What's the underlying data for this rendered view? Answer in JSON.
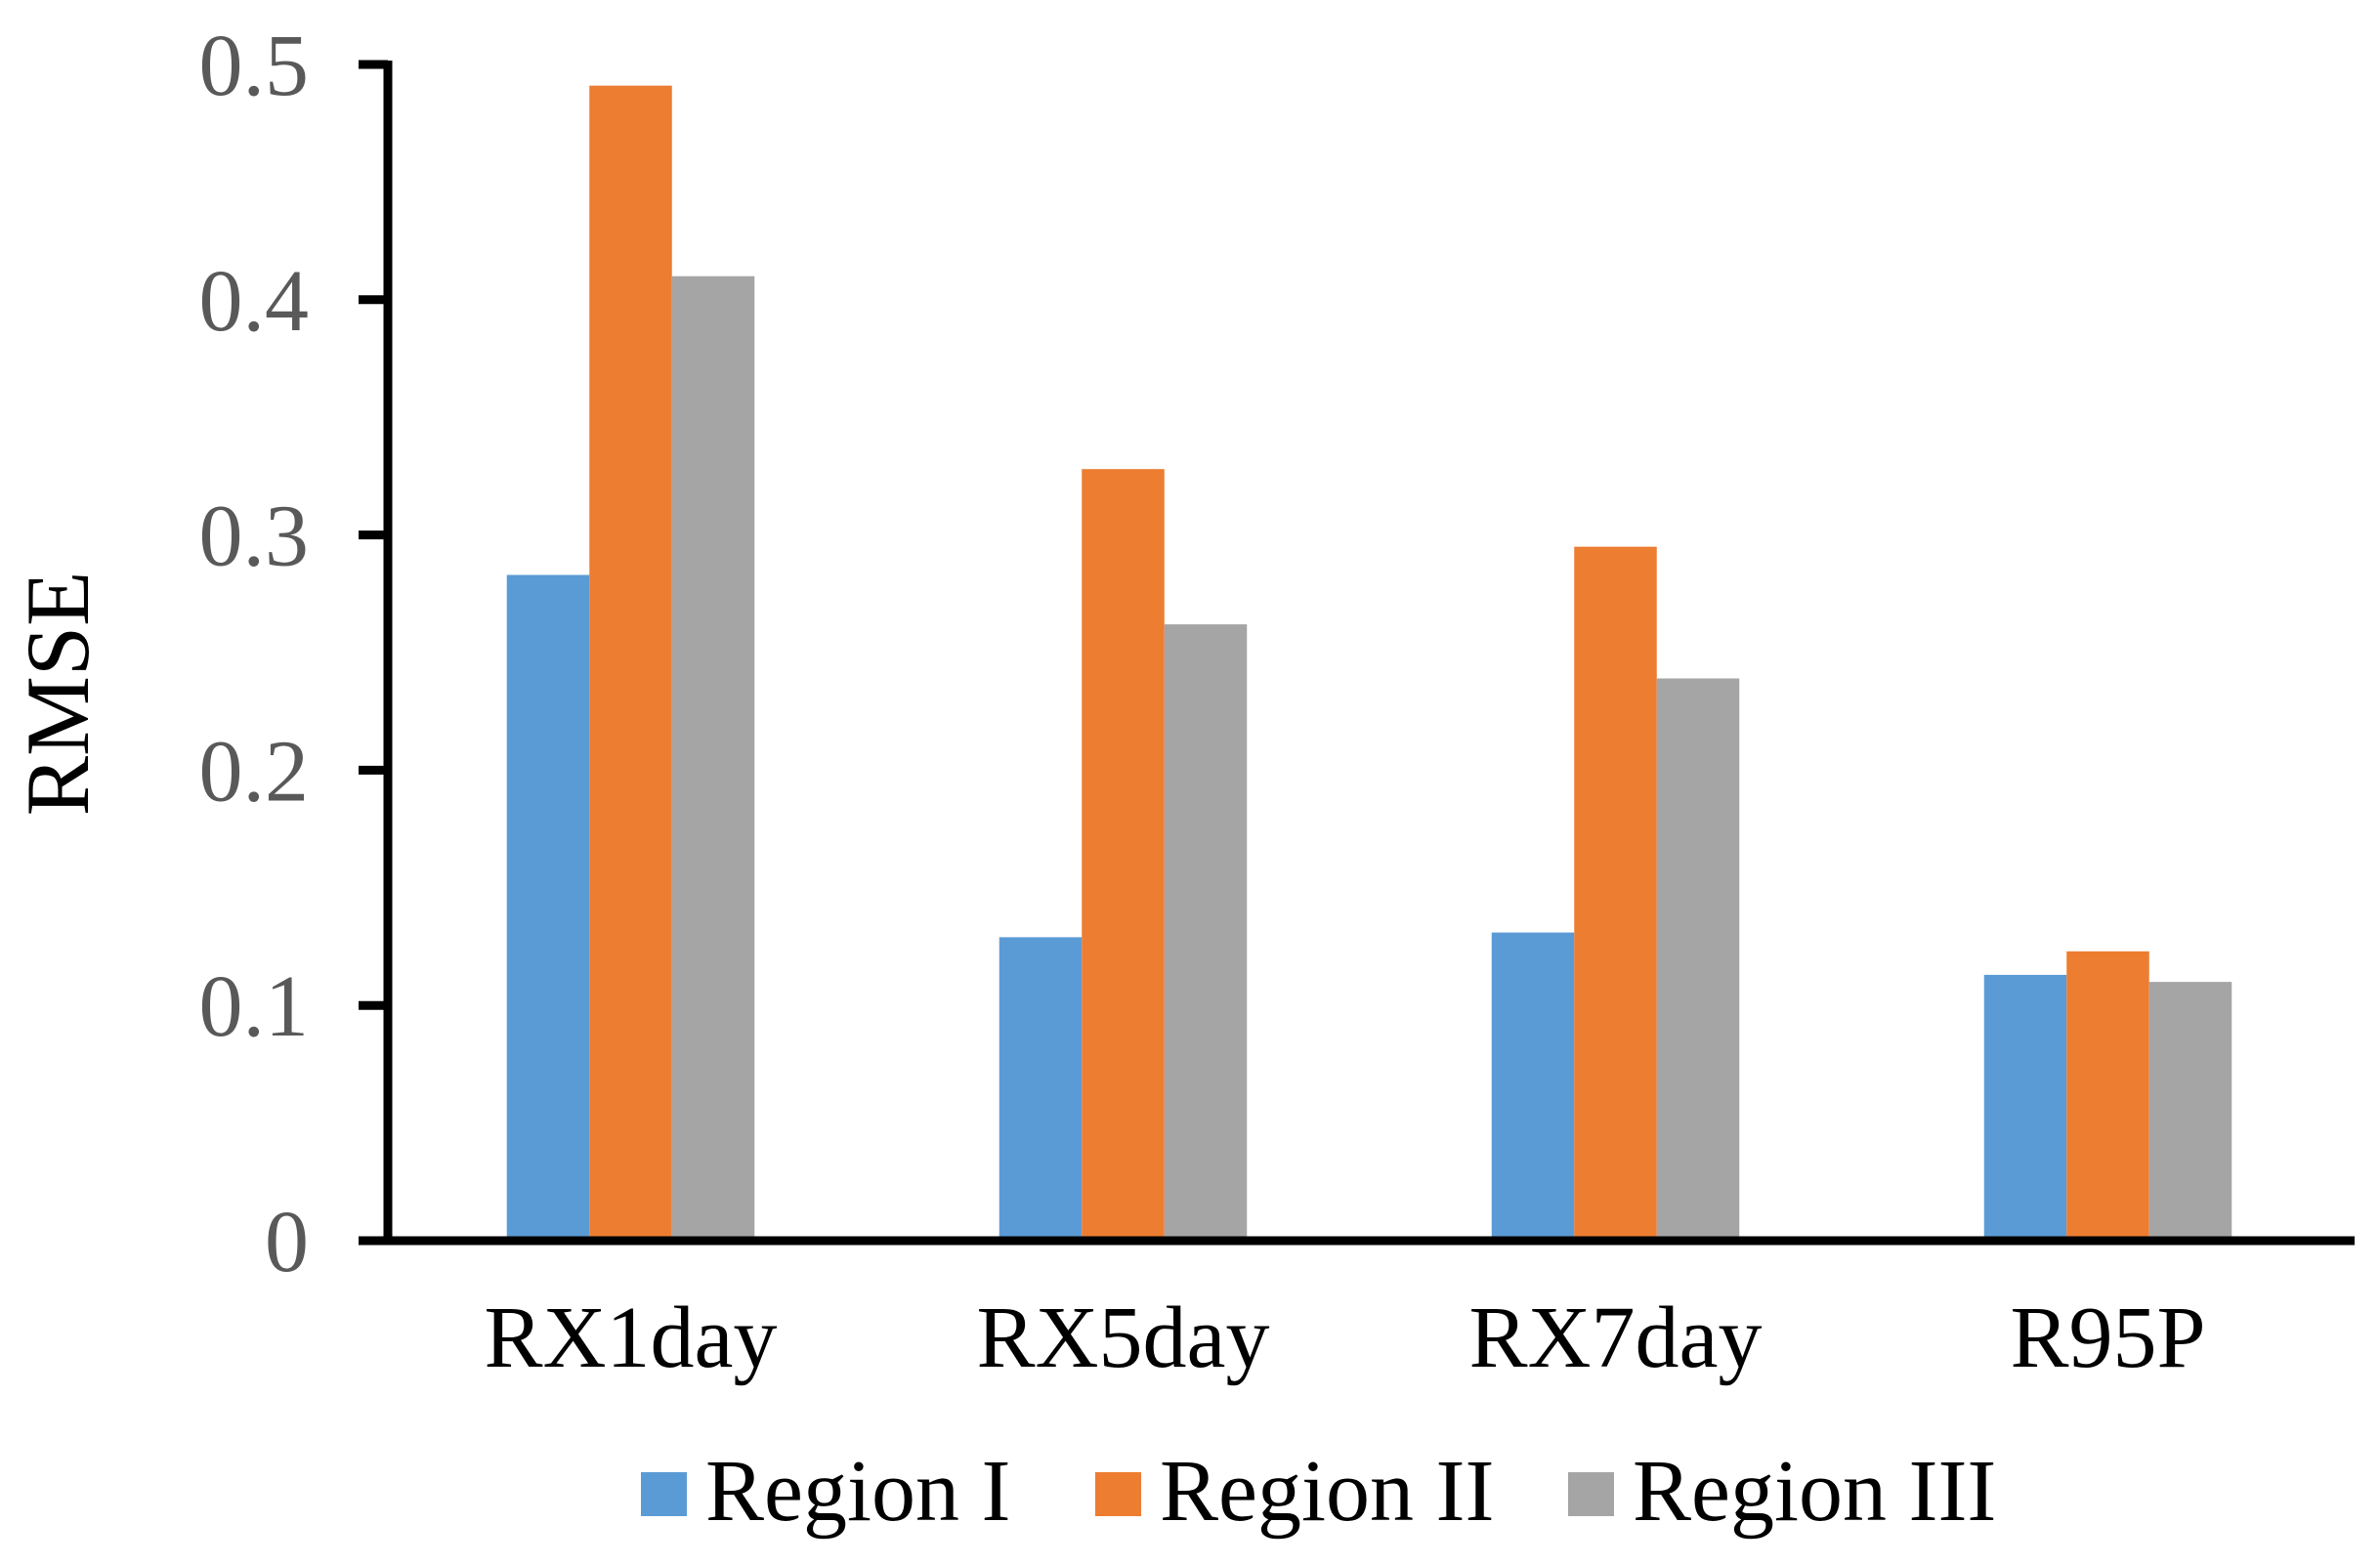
{
  "chart_data": {
    "type": "bar",
    "title": "",
    "xlabel": "",
    "ylabel": "RMSE",
    "categories": [
      "RX1day",
      "RX5day",
      "RX7day",
      "R95P"
    ],
    "series": [
      {
        "name": "Region I",
        "color": "#5B9BD5",
        "values": [
          0.283,
          0.129,
          0.131,
          0.113
        ]
      },
      {
        "name": "Region II",
        "color": "#ED7D31",
        "values": [
          0.491,
          0.328,
          0.295,
          0.123
        ]
      },
      {
        "name": "Region III",
        "color": "#A5A5A5",
        "values": [
          0.41,
          0.262,
          0.239,
          0.11
        ]
      }
    ],
    "ylim": [
      0,
      0.5
    ],
    "ytick_values": [
      0,
      0.1,
      0.2,
      0.3,
      0.4,
      0.5
    ],
    "ytick_labels": [
      "0",
      "0.1",
      "0.2",
      "0.3",
      "0.4",
      "0.5"
    ],
    "grid": false,
    "legend_position": "bottom",
    "axis_color": "#000000",
    "tick_label_color": "#595959",
    "text_color": "#000000",
    "background_color": "#FFFFFF"
  }
}
